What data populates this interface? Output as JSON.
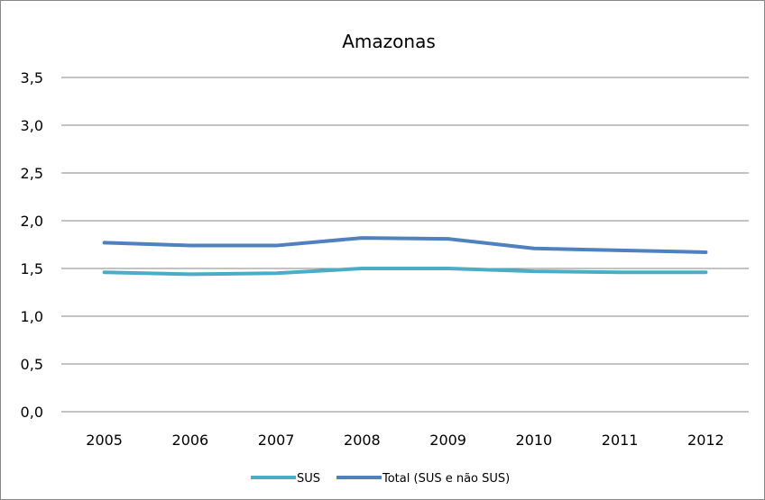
{
  "chart_data": {
    "type": "line",
    "title": "Amazonas",
    "xlabel": "",
    "ylabel": "",
    "categories": [
      "2005",
      "2006",
      "2007",
      "2008",
      "2009",
      "2010",
      "2011",
      "2012"
    ],
    "y_ticks": [
      "0,0",
      "0,5",
      "1,0",
      "1,5",
      "2,0",
      "2,5",
      "3,0",
      "3,5"
    ],
    "ylim": [
      0,
      3.5
    ],
    "grid": true,
    "legend_position": "bottom",
    "series": [
      {
        "name": "SUS",
        "color": "#4bacc6",
        "values": [
          1.46,
          1.44,
          1.45,
          1.5,
          1.5,
          1.47,
          1.46,
          1.46
        ]
      },
      {
        "name": "Total (SUS e não SUS)",
        "color": "#4f81bd",
        "values": [
          1.77,
          1.74,
          1.74,
          1.82,
          1.81,
          1.71,
          1.69,
          1.67
        ]
      }
    ]
  }
}
